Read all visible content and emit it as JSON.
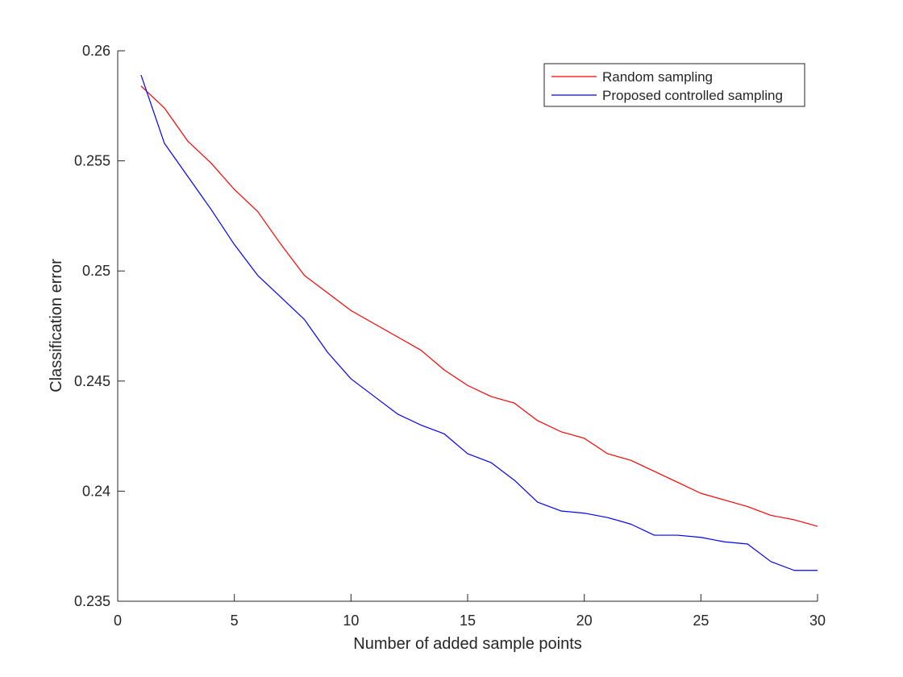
{
  "chart_data": {
    "type": "line",
    "title": "",
    "xlabel": "Number of added sample points",
    "ylabel": "Classification error",
    "xlim": [
      0,
      30
    ],
    "ylim": [
      0.235,
      0.26
    ],
    "xticks": [
      0,
      5,
      10,
      15,
      20,
      25,
      30
    ],
    "yticks": [
      0.235,
      0.24,
      0.245,
      0.25,
      0.255,
      0.26
    ],
    "xtick_labels": [
      "0",
      "5",
      "10",
      "15",
      "20",
      "25",
      "30"
    ],
    "ytick_labels": [
      "0.235",
      "0.24",
      "0.245",
      "0.25",
      "0.255",
      "0.26"
    ],
    "grid": false,
    "legend_position": "top-right",
    "x": [
      1,
      2,
      3,
      4,
      5,
      6,
      7,
      8,
      9,
      10,
      11,
      12,
      13,
      14,
      15,
      16,
      17,
      18,
      19,
      20,
      21,
      22,
      23,
      24,
      25,
      26,
      27,
      28,
      29,
      30
    ],
    "series": [
      {
        "name": "Random sampling",
        "color": "#ff0000",
        "values": [
          0.2584,
          0.2574,
          0.2559,
          0.2549,
          0.2537,
          0.2527,
          0.2512,
          0.2498,
          0.249,
          0.2482,
          0.2476,
          0.247,
          0.2464,
          0.2455,
          0.2448,
          0.2443,
          0.244,
          0.2432,
          0.2427,
          0.2424,
          0.2417,
          0.2414,
          0.2409,
          0.2404,
          0.2399,
          0.2396,
          0.2393,
          0.2389,
          0.2387,
          0.2384
        ]
      },
      {
        "name": "Proposed controlled sampling",
        "color": "#0000ff",
        "values": [
          0.2589,
          0.2558,
          0.2543,
          0.2528,
          0.2512,
          0.2498,
          0.2488,
          0.2478,
          0.2463,
          0.2451,
          0.2443,
          0.2435,
          0.243,
          0.2426,
          0.2417,
          0.2413,
          0.2405,
          0.2395,
          0.2391,
          0.239,
          0.2388,
          0.2385,
          0.238,
          0.238,
          0.2379,
          0.2377,
          0.2376,
          0.2368,
          0.2364,
          0.2364
        ]
      }
    ]
  }
}
